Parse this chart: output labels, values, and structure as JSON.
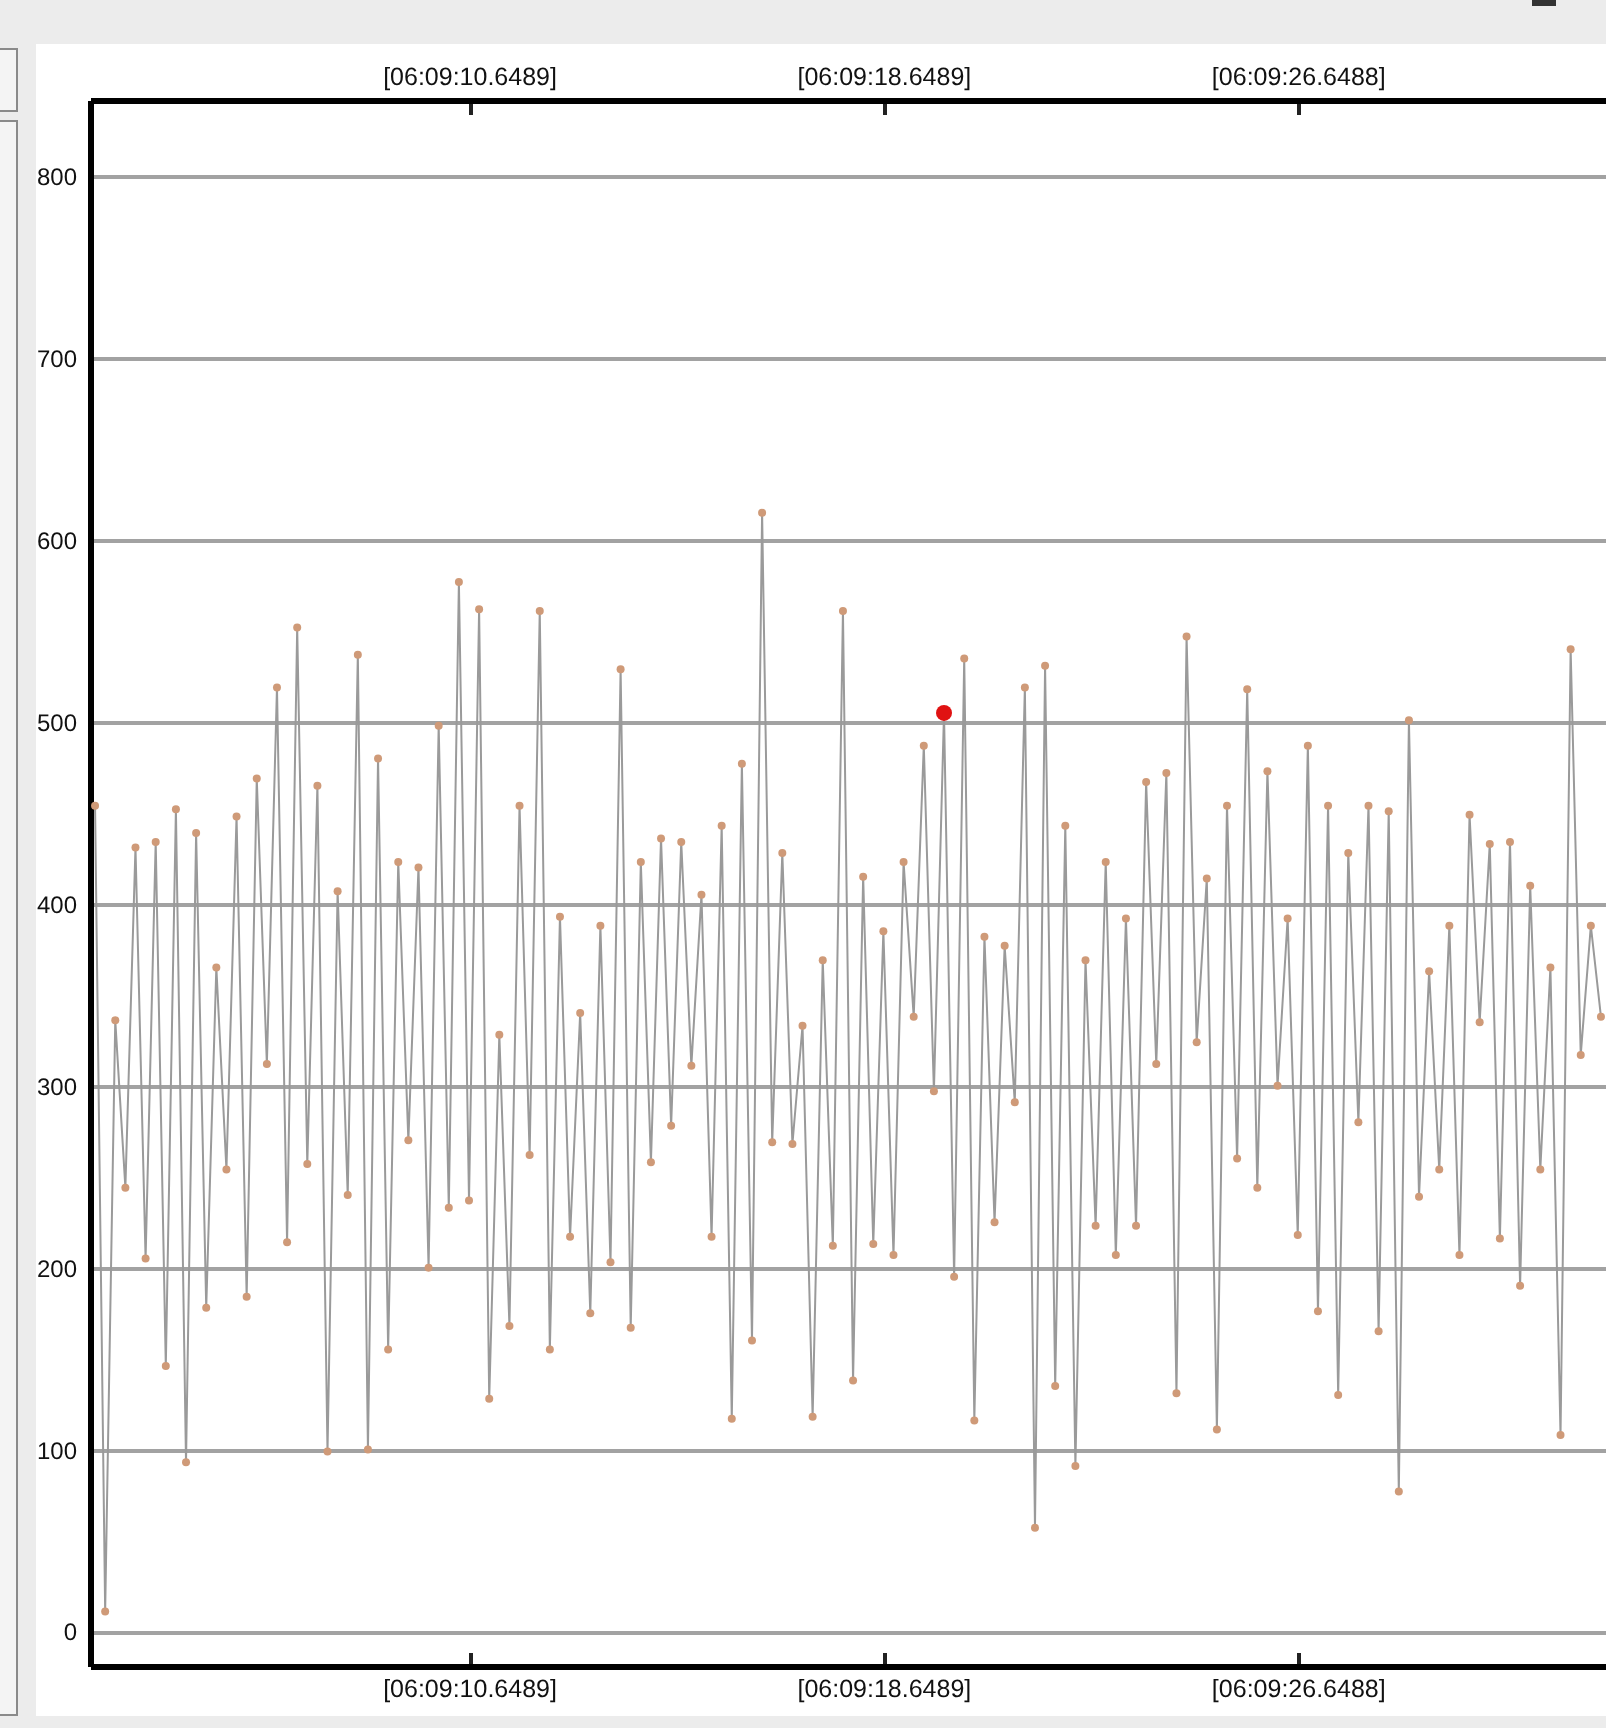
{
  "chart_data": {
    "type": "line",
    "categories": [
      null,
      null,
      null,
      null,
      null,
      null,
      null,
      null,
      null,
      null,
      null,
      null,
      null,
      null,
      null,
      null,
      null,
      null,
      null,
      null,
      null,
      null,
      null,
      null,
      null,
      null,
      null,
      null,
      null,
      null,
      null,
      null,
      null,
      null,
      null,
      null,
      null,
      "[06:09:10.6489]",
      null,
      null,
      null,
      null,
      null,
      null,
      null,
      null,
      null,
      null,
      null,
      null,
      null,
      null,
      null,
      null,
      null,
      null,
      null,
      null,
      null,
      null,
      null,
      null,
      null,
      null,
      null,
      null,
      null,
      null,
      null,
      null,
      null,
      null,
      null,
      null,
      null,
      null,
      null,
      null,
      "[06:09:18.6489]",
      null,
      null,
      null,
      null,
      null,
      null,
      null,
      null,
      null,
      null,
      null,
      null,
      null,
      null,
      null,
      null,
      null,
      null,
      null,
      null,
      null,
      null,
      null,
      null,
      null,
      null,
      null,
      null,
      null,
      null,
      null,
      null,
      null,
      null,
      null,
      null,
      null,
      null,
      null,
      null,
      "[06:09:26.6488]",
      null,
      null,
      null,
      null,
      null,
      null,
      null,
      null,
      null,
      null,
      null,
      null,
      null,
      null,
      null,
      null,
      null,
      null,
      null,
      null,
      null,
      null,
      null,
      null,
      null,
      null,
      null,
      null,
      null,
      null
    ],
    "series": [
      {
        "type": "line",
        "color": "#9a9a9a",
        "values": [
          454,
          11,
          336,
          244,
          431,
          205,
          434,
          146,
          452,
          93,
          439,
          178,
          365,
          254,
          448,
          184,
          469,
          312,
          519,
          214,
          552,
          257,
          465,
          99,
          407,
          240,
          537,
          100,
          480,
          155,
          423,
          270,
          420,
          200,
          498,
          233,
          577,
          237,
          562,
          128,
          328,
          168,
          454,
          262,
          561,
          155,
          393,
          217,
          340,
          175,
          388,
          203,
          529,
          167,
          423,
          258,
          436,
          278,
          434,
          311,
          405,
          217,
          443,
          117,
          477,
          160,
          615,
          269,
          428,
          268,
          333,
          118,
          369,
          212,
          561,
          138,
          415,
          213,
          385,
          207,
          423,
          338,
          487,
          297,
          505,
          195,
          535,
          116,
          382,
          225,
          377,
          291,
          519,
          57,
          531,
          135,
          443,
          91,
          369,
          223,
          423,
          207,
          392,
          223,
          467,
          312,
          472,
          131,
          547,
          324,
          414,
          111,
          454,
          260,
          518,
          244,
          473,
          300,
          392,
          218,
          487,
          176,
          454,
          130,
          428,
          280,
          454,
          165,
          451,
          77,
          501,
          239,
          363,
          254,
          388,
          207,
          449,
          335,
          433,
          216,
          434,
          190,
          410,
          254,
          365,
          108,
          540,
          317,
          388,
          338
        ]
      },
      {
        "type": "scatter",
        "color": "#cf9a78",
        "values": [
          454,
          11,
          336,
          244,
          431,
          205,
          434,
          146,
          452,
          93,
          439,
          178,
          365,
          254,
          448,
          184,
          469,
          312,
          519,
          214,
          552,
          257,
          465,
          99,
          407,
          240,
          537,
          100,
          480,
          155,
          423,
          270,
          420,
          200,
          498,
          233,
          577,
          237,
          562,
          128,
          328,
          168,
          454,
          262,
          561,
          155,
          393,
          217,
          340,
          175,
          388,
          203,
          529,
          167,
          423,
          258,
          436,
          278,
          434,
          311,
          405,
          217,
          443,
          117,
          477,
          160,
          615,
          269,
          428,
          268,
          333,
          118,
          369,
          212,
          561,
          138,
          415,
          213,
          385,
          207,
          423,
          338,
          487,
          297,
          null,
          195,
          535,
          116,
          382,
          225,
          377,
          291,
          519,
          57,
          531,
          135,
          443,
          91,
          369,
          223,
          423,
          207,
          392,
          223,
          467,
          312,
          472,
          131,
          547,
          324,
          414,
          111,
          454,
          260,
          518,
          244,
          473,
          300,
          392,
          218,
          487,
          176,
          454,
          130,
          428,
          280,
          454,
          165,
          451,
          77,
          501,
          239,
          363,
          254,
          388,
          207,
          449,
          335,
          433,
          216,
          434,
          190,
          410,
          254,
          365,
          108,
          540,
          317,
          388,
          338
        ]
      },
      {
        "type": "scatter",
        "color": "#e01212",
        "values": [
          null,
          null,
          null,
          null,
          null,
          null,
          null,
          null,
          null,
          null,
          null,
          null,
          null,
          null,
          null,
          null,
          null,
          null,
          null,
          null,
          null,
          null,
          null,
          null,
          null,
          null,
          null,
          null,
          null,
          null,
          null,
          null,
          null,
          null,
          null,
          null,
          null,
          null,
          null,
          null,
          null,
          null,
          null,
          null,
          null,
          null,
          null,
          null,
          null,
          null,
          null,
          null,
          null,
          null,
          null,
          null,
          null,
          null,
          null,
          null,
          null,
          null,
          null,
          null,
          null,
          null,
          null,
          null,
          null,
          null,
          null,
          null,
          null,
          null,
          null,
          null,
          null,
          null,
          null,
          null,
          null,
          null,
          null,
          null,
          505,
          null,
          null,
          null,
          null,
          null,
          null,
          null,
          null,
          null,
          null,
          null,
          null,
          null,
          null,
          null,
          null,
          null,
          null,
          null,
          null,
          null,
          null,
          null,
          null,
          null,
          null,
          null,
          null,
          null,
          null,
          null,
          null,
          null,
          null,
          null,
          null,
          null,
          null,
          null,
          null,
          null,
          null,
          null,
          null,
          null,
          null,
          null,
          null,
          null,
          null,
          null,
          null,
          null,
          null,
          null,
          null,
          null,
          null,
          null,
          null,
          null,
          null,
          null,
          null,
          null
        ]
      }
    ],
    "ylim": [
      -19,
      842
    ],
    "yticks": [
      0,
      100,
      200,
      300,
      400,
      500,
      600,
      700,
      800
    ],
    "grid": "y"
  }
}
